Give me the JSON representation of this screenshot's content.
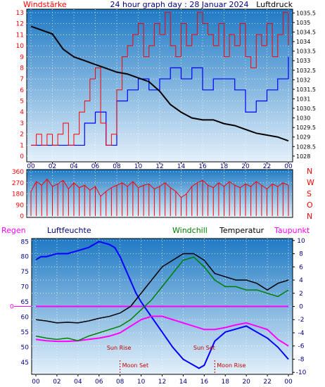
{
  "header": {
    "left_title": "Windstärke",
    "center_title": "24 hour graph day : 28 Januar 2024",
    "right_title": "Luftdruck"
  },
  "colors": {
    "frame": "#000000",
    "grid": "#ffffff",
    "wind": "#ff0000",
    "wind_avg": "#0000ff",
    "pressure": "#000000",
    "direction": "#ff0000",
    "humidity": "#0000ff",
    "windchill": "#008000",
    "temperature": "#000000",
    "dewpoint": "#ff00ff",
    "rain_line": "#ff00ff",
    "sky_top": "#1f7ac4",
    "sky_bottom": "#e4f0fa",
    "marker": "#c00000"
  },
  "chart_data": [
    {
      "type": "line",
      "title": "24 hour graph day : 28 Januar 2024",
      "xlabel": "",
      "x_ticks": [
        "00",
        "02",
        "04",
        "06",
        "08",
        "10",
        "12",
        "14",
        "16",
        "18",
        "20",
        "22",
        "00"
      ],
      "xlim": [
        0,
        24
      ],
      "y_left_label": "Windstärke",
      "y_left_ticks": [
        "0",
        "1",
        "2",
        "3",
        "4",
        "5",
        "6",
        "7",
        "8",
        "9",
        "10",
        "11",
        "12",
        "13"
      ],
      "ylim_left": [
        0,
        13
      ],
      "y_right_label": "Luftdruck",
      "y_right_ticks": [
        "1028",
        "1028.5",
        "1029",
        "1029.5",
        "1030",
        "1030.5",
        "1031",
        "1031.5",
        "1032",
        "1032.5",
        "1033",
        "1033.5",
        "1034",
        "1034.5",
        "1035",
        "1035.5"
      ],
      "ylim_right": [
        1027.7,
        1035.7
      ],
      "series": [
        {
          "name": "Windstärke",
          "x": [
            0,
            0.5,
            1,
            1.5,
            2,
            2.5,
            3,
            3.5,
            4,
            4.5,
            5,
            5.5,
            6,
            6.5,
            7,
            7.5,
            8,
            8.5,
            9,
            9.5,
            10,
            10.5,
            11,
            11.5,
            12,
            12.5,
            13,
            13.5,
            14,
            14.5,
            15,
            15.5,
            16,
            16.5,
            17,
            17.5,
            18,
            18.5,
            19,
            19.5,
            20,
            20.5,
            21,
            21.5,
            22,
            22.5,
            23,
            23.5,
            24
          ],
          "values": [
            1,
            2,
            1,
            2,
            1,
            2,
            3,
            1,
            2,
            4,
            5,
            7,
            8,
            3,
            1,
            2,
            6,
            9,
            10,
            11,
            12,
            9,
            10,
            12,
            11,
            13,
            10,
            9,
            12,
            10,
            11,
            13,
            12,
            11,
            10,
            12,
            9,
            11,
            10,
            12,
            9,
            8,
            11,
            10,
            12,
            9,
            11,
            13,
            10
          ]
        },
        {
          "name": "Windstärke Mittel",
          "x": [
            0,
            1,
            2,
            3,
            4,
            5,
            6,
            7,
            8,
            9,
            10,
            11,
            12,
            13,
            14,
            15,
            16,
            17,
            18,
            19,
            20,
            21,
            22,
            23,
            24
          ],
          "values": [
            1,
            1,
            1,
            1,
            1,
            3,
            4,
            1,
            5,
            6,
            7,
            6,
            7,
            8,
            7,
            8,
            6,
            7,
            7,
            6,
            4,
            5,
            6,
            7,
            9
          ]
        },
        {
          "name": "Luftdruck",
          "x": [
            0,
            1,
            2,
            3,
            4,
            5,
            6,
            7,
            8,
            9,
            10,
            11,
            12,
            13,
            14,
            15,
            16,
            17,
            18,
            19,
            20,
            21,
            22,
            23,
            24
          ],
          "values": [
            1034.8,
            1034.6,
            1034.4,
            1033.6,
            1033.2,
            1033.0,
            1032.8,
            1032.6,
            1032.4,
            1032.3,
            1032.1,
            1031.9,
            1031.4,
            1030.7,
            1030.3,
            1030.0,
            1029.9,
            1029.9,
            1029.7,
            1029.6,
            1029.4,
            1029.2,
            1029.1,
            1029.0,
            1028.8
          ]
        }
      ]
    },
    {
      "type": "line",
      "title": "",
      "x_ticks": [
        "00",
        "02",
        "04",
        "06",
        "08",
        "10",
        "12",
        "14",
        "16",
        "18",
        "20",
        "22",
        "00"
      ],
      "xlim": [
        0,
        24
      ],
      "y_left_ticks": [
        "0",
        "90",
        "180",
        "270",
        "360"
      ],
      "ylim": [
        0,
        360
      ],
      "right_labels": [
        "N",
        "W",
        "S",
        "O",
        "N"
      ],
      "series": [
        {
          "name": "Windrichtung",
          "x": [
            0,
            0.5,
            1,
            1.5,
            2,
            2.5,
            3,
            3.5,
            4,
            4.5,
            5,
            5.5,
            6,
            6.5,
            7,
            7.5,
            8,
            8.5,
            9,
            9.5,
            10,
            10.5,
            11,
            11.5,
            12,
            12.5,
            13,
            13.5,
            14,
            14.5,
            15,
            15.5,
            16,
            16.5,
            17,
            17.5,
            18,
            18.5,
            19,
            19.5,
            20,
            20.5,
            21,
            21.5,
            22,
            22.5,
            23,
            23.5,
            24
          ],
          "values": [
            200,
            280,
            250,
            300,
            240,
            260,
            290,
            220,
            270,
            230,
            250,
            210,
            240,
            160,
            200,
            230,
            250,
            270,
            240,
            280,
            230,
            250,
            260,
            220,
            240,
            270,
            230,
            200,
            150,
            180,
            240,
            270,
            290,
            250,
            230,
            270,
            240,
            280,
            250,
            230,
            260,
            240,
            280,
            250,
            220,
            260,
            240,
            270,
            250
          ]
        }
      ]
    },
    {
      "type": "line",
      "title": "",
      "x_ticks": [
        "00",
        "02",
        "04",
        "06",
        "08",
        "10",
        "12",
        "14",
        "16",
        "18",
        "20",
        "22",
        "00"
      ],
      "xlim": [
        0,
        24
      ],
      "y_left_label": "Luftfeuchte",
      "y_left_ticks": [
        "45",
        "50",
        "55",
        "60",
        "65",
        "70",
        "75",
        "80",
        "85"
      ],
      "ylim_left": [
        41,
        86
      ],
      "y_right_ticks": [
        "-10",
        "-8",
        "-6",
        "-4",
        "-2",
        "0",
        "2",
        "4",
        "6",
        "8",
        "10"
      ],
      "ylim_right": [
        -10.3,
        10.3
      ],
      "rain_label": "Regen",
      "rain_tick": "0",
      "annotations": [
        "Sun Rise",
        "Sun Set",
        "Moon Set",
        "Moon Rise"
      ],
      "series": [
        {
          "name": "Luftfeuchte",
          "x": [
            0,
            0.5,
            1,
            2,
            3,
            4,
            5,
            6,
            7,
            7.5,
            8,
            8.5,
            9,
            9.5,
            10,
            11,
            12,
            13,
            14,
            15,
            15.5,
            16,
            17,
            18,
            19,
            20,
            21,
            22,
            23,
            24
          ],
          "values": [
            79,
            80,
            80,
            81,
            81,
            82,
            83,
            85,
            84,
            83,
            80,
            76,
            72,
            68,
            65,
            60,
            55,
            50,
            46,
            44,
            43,
            44,
            52,
            55,
            56,
            57,
            55,
            53,
            50,
            46
          ]
        },
        {
          "name": "Windchill",
          "x": [
            0,
            1,
            2,
            3,
            4,
            5,
            6,
            7,
            8,
            9,
            10,
            11,
            12,
            13,
            14,
            15,
            16,
            17,
            18,
            19,
            20,
            21,
            22,
            23,
            24
          ],
          "values": [
            -4.5,
            -4.8,
            -5,
            -4.8,
            -5.2,
            -4.5,
            -4,
            -3.5,
            -3,
            -2,
            -0.5,
            1,
            3,
            5,
            7,
            7.5,
            6,
            4,
            3,
            3,
            2.5,
            2.5,
            2,
            1.5,
            2.5
          ]
        },
        {
          "name": "Temperatur",
          "x": [
            0,
            1,
            2,
            3,
            4,
            5,
            6,
            7,
            8,
            9,
            10,
            11,
            12,
            13,
            14,
            15,
            16,
            17,
            18,
            19,
            20,
            21,
            22,
            23,
            24
          ],
          "values": [
            -2,
            -2.2,
            -2.5,
            -2.4,
            -2.5,
            -2.2,
            -1.8,
            -1.5,
            -1,
            0,
            2,
            4,
            6,
            7,
            8,
            8,
            7,
            5,
            4.5,
            4,
            4,
            3.5,
            2.5,
            3.5,
            4
          ]
        },
        {
          "name": "Taupunkt",
          "x": [
            0,
            1,
            2,
            3,
            4,
            5,
            6,
            7,
            8,
            9,
            10,
            11,
            12,
            13,
            14,
            15,
            16,
            17,
            18,
            19,
            20,
            21,
            22,
            23,
            24
          ],
          "values": [
            -5,
            -5.2,
            -5.3,
            -5.3,
            -5.2,
            -5,
            -4.8,
            -4.5,
            -4,
            -3,
            -2,
            -1.5,
            -1.5,
            -2,
            -2.5,
            -3,
            -3.5,
            -3.5,
            -3.2,
            -2.8,
            -2.5,
            -3,
            -3.5,
            -5,
            -6
          ]
        },
        {
          "name": "Regen",
          "x": [
            0,
            24
          ],
          "values": [
            0,
            0
          ]
        }
      ]
    }
  ],
  "legend": {
    "rain": "Regen",
    "humidity": "Luftfeuchte",
    "windchill": "Windchill",
    "temperature": "Temperatur",
    "dewpoint": "Taupunkt"
  }
}
